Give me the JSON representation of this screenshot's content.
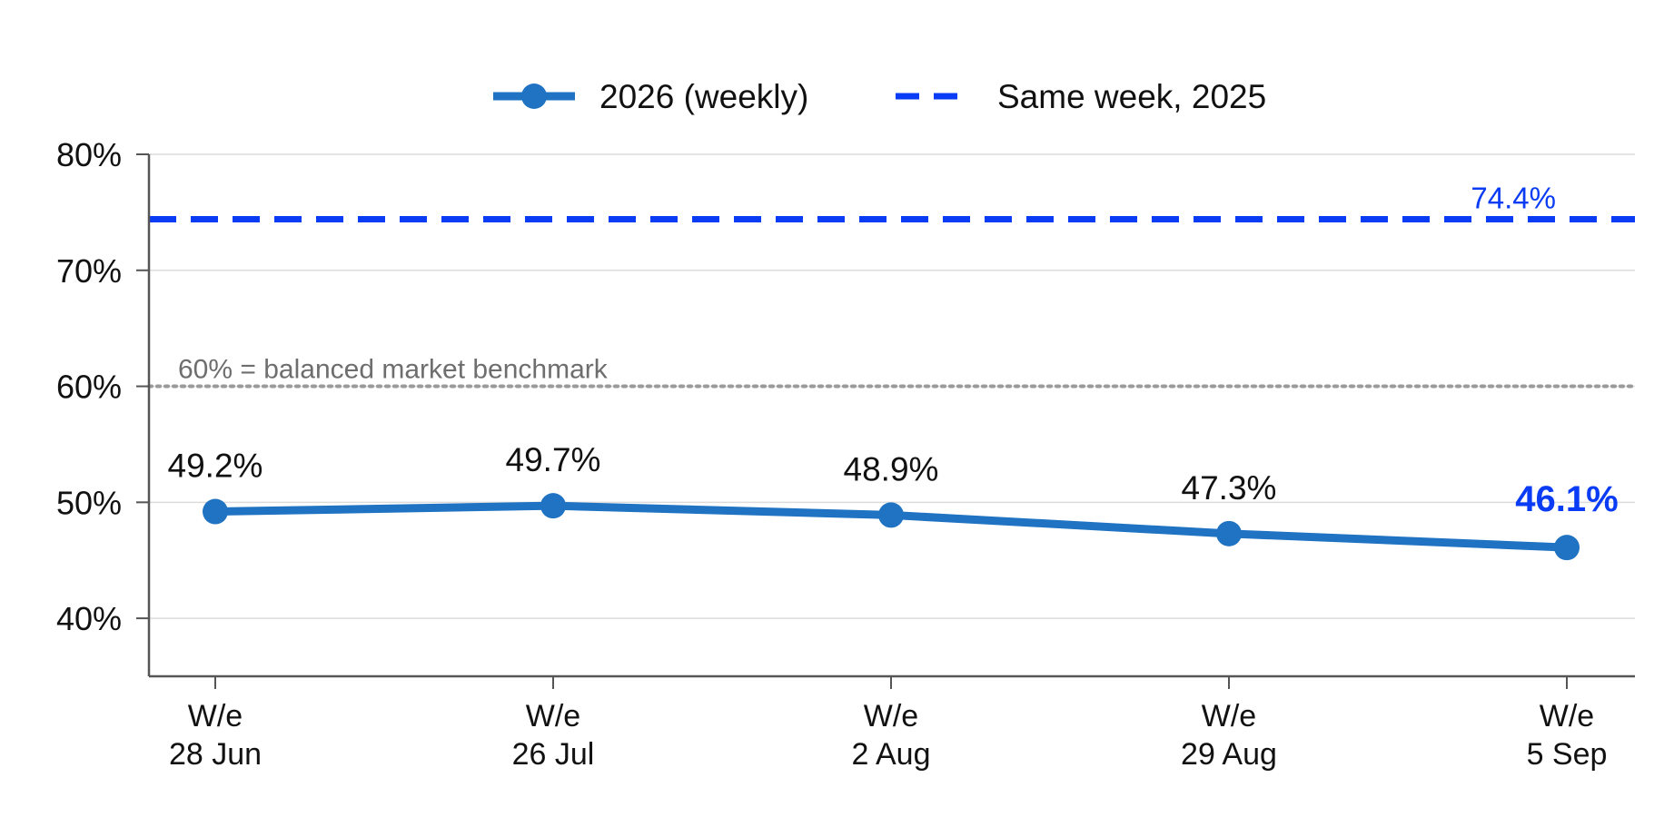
{
  "chart_data": {
    "type": "line",
    "categories": [
      [
        "W/e",
        "28 Jun"
      ],
      [
        "W/e",
        "26 Jul"
      ],
      [
        "W/e",
        "2 Aug"
      ],
      [
        "W/e",
        "29 Aug"
      ],
      [
        "W/e",
        "5 Sep"
      ]
    ],
    "series": [
      {
        "name": "2026 (weekly)",
        "values": [
          49.2,
          49.7,
          48.9,
          47.3,
          46.1
        ],
        "value_labels": [
          "49.2%",
          "49.7%",
          "48.9%",
          "47.3%",
          "46.1%"
        ],
        "color": "#1f73c2"
      }
    ],
    "reference_lines": [
      {
        "name": "Same week, 2025",
        "value": 74.4,
        "label": "74.4%",
        "style": "dashed",
        "color": "#0a3cf5"
      },
      {
        "name": "",
        "value": 60,
        "label": "60% = balanced market benchmark",
        "style": "dotted",
        "color": "#9a9a9a"
      }
    ],
    "y_ticks": [
      40,
      50,
      60,
      70,
      80
    ],
    "y_tick_labels": [
      "40%",
      "50%",
      "60%",
      "70%",
      "80%"
    ],
    "ylim": [
      35,
      80
    ],
    "grid": "horizontal",
    "legend_position": "top-center",
    "highlight_color": "#0a3cf5",
    "title": "",
    "xlabel": "",
    "ylabel": ""
  }
}
